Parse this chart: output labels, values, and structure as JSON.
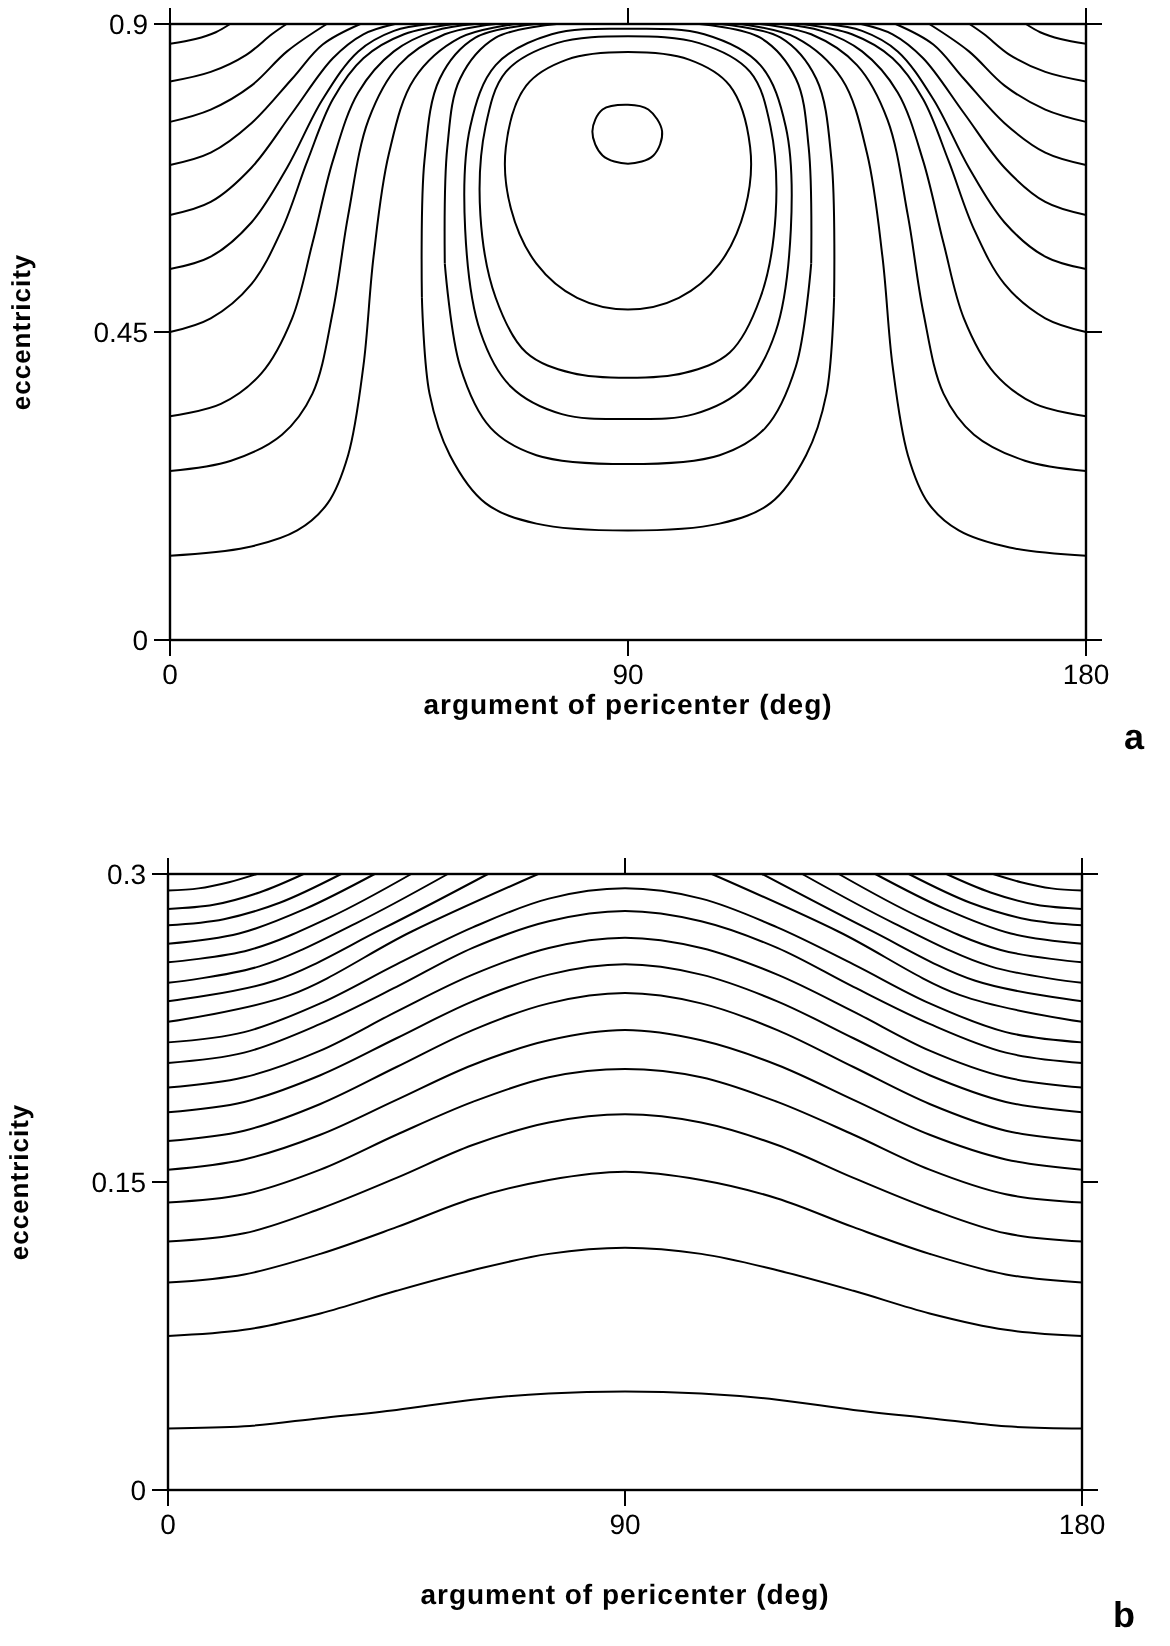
{
  "chart_data": [
    {
      "type": "line",
      "xlabel": "argument of pericenter (deg)",
      "ylabel": "eccentricity",
      "annotations": [
        "a"
      ],
      "xlim": [
        0,
        180
      ],
      "ylim": [
        0,
        0.9
      ],
      "xticks": [
        0,
        90,
        180
      ],
      "yticks": [
        0,
        0.45,
        0.9
      ],
      "marker": "none",
      "line_style": "solid",
      "series": [
        {
          "color": "#000000",
          "x": [
            0,
            5,
            9,
            11.8
          ],
          "values": [
            0.871,
            0.878,
            0.888,
            0.9
          ]
        },
        {
          "color": "#000000",
          "x": [
            168.2,
            171,
            175,
            180
          ],
          "values": [
            0.9,
            0.888,
            0.878,
            0.871
          ]
        },
        {
          "color": "#000000",
          "x": [
            0,
            8,
            15,
            20,
            22.9
          ],
          "values": [
            0.816,
            0.83,
            0.855,
            0.885,
            0.9
          ]
        },
        {
          "color": "#000000",
          "x": [
            157.1,
            160,
            165,
            172,
            180
          ],
          "values": [
            0.9,
            0.885,
            0.855,
            0.83,
            0.816
          ]
        },
        {
          "color": "#000000",
          "x": [
            0,
            8,
            16,
            23,
            30.8
          ],
          "values": [
            0.757,
            0.775,
            0.81,
            0.86,
            0.9
          ]
        },
        {
          "color": "#000000",
          "x": [
            149.2,
            157,
            164,
            172,
            180
          ],
          "values": [
            0.9,
            0.86,
            0.81,
            0.775,
            0.757
          ]
        },
        {
          "color": "#000000",
          "x": [
            0,
            8,
            16,
            24,
            30,
            37.4
          ],
          "values": [
            0.694,
            0.712,
            0.755,
            0.82,
            0.87,
            0.9
          ]
        },
        {
          "color": "#000000",
          "x": [
            142.6,
            150,
            156,
            164,
            172,
            180
          ],
          "values": [
            0.9,
            0.87,
            0.82,
            0.755,
            0.712,
            0.694
          ]
        },
        {
          "color": "#000000",
          "x": [
            0,
            8,
            16,
            24,
            32,
            38,
            44.2
          ],
          "values": [
            0.621,
            0.64,
            0.69,
            0.77,
            0.85,
            0.885,
            0.9
          ]
        },
        {
          "color": "#000000",
          "x": [
            135.8,
            142,
            148,
            156,
            164,
            172,
            180
          ],
          "values": [
            0.9,
            0.885,
            0.85,
            0.77,
            0.69,
            0.64,
            0.621
          ]
        },
        {
          "color": "#000000",
          "x": [
            0,
            8,
            16,
            23,
            30,
            37,
            44,
            51
          ],
          "values": [
            0.542,
            0.56,
            0.61,
            0.69,
            0.79,
            0.86,
            0.89,
            0.9
          ]
        },
        {
          "color": "#000000",
          "x": [
            129,
            136,
            143,
            150,
            157,
            164,
            172,
            180
          ],
          "values": [
            0.9,
            0.89,
            0.86,
            0.79,
            0.69,
            0.61,
            0.56,
            0.542
          ]
        },
        {
          "color": "#000000",
          "x": [
            0,
            8,
            16,
            22,
            27,
            32,
            38,
            46,
            56
          ],
          "values": [
            0.45,
            0.47,
            0.52,
            0.6,
            0.7,
            0.79,
            0.85,
            0.885,
            0.9
          ]
        },
        {
          "color": "#000000",
          "x": [
            124,
            134,
            142,
            148,
            153,
            158,
            164,
            172,
            180
          ],
          "values": [
            0.9,
            0.885,
            0.85,
            0.79,
            0.7,
            0.6,
            0.52,
            0.47,
            0.45
          ]
        },
        {
          "color": "#000000",
          "x": [
            0,
            10,
            18,
            24,
            28,
            32,
            37,
            44,
            52,
            60
          ],
          "values": [
            0.327,
            0.345,
            0.39,
            0.47,
            0.58,
            0.7,
            0.8,
            0.86,
            0.89,
            0.9
          ]
        },
        {
          "color": "#000000",
          "x": [
            120,
            128,
            136,
            143,
            148,
            152,
            156,
            162,
            170,
            180
          ],
          "values": [
            0.9,
            0.89,
            0.86,
            0.8,
            0.7,
            0.58,
            0.47,
            0.39,
            0.345,
            0.327
          ]
        },
        {
          "color": "#000000",
          "x": [
            0,
            12,
            22,
            28,
            32,
            35,
            39,
            45,
            54,
            64
          ],
          "values": [
            0.247,
            0.262,
            0.3,
            0.36,
            0.48,
            0.62,
            0.76,
            0.84,
            0.885,
            0.9
          ]
        },
        {
          "color": "#000000",
          "x": [
            116,
            126,
            135,
            141,
            145,
            148,
            152,
            158,
            168,
            180
          ],
          "values": [
            0.9,
            0.885,
            0.84,
            0.76,
            0.62,
            0.48,
            0.36,
            0.3,
            0.262,
            0.247
          ]
        },
        {
          "color": "#000000",
          "x": [
            0,
            15,
            25,
            31,
            35,
            38,
            40,
            43,
            48,
            57,
            68
          ],
          "values": [
            0.123,
            0.135,
            0.16,
            0.2,
            0.27,
            0.4,
            0.56,
            0.71,
            0.82,
            0.88,
            0.9
          ]
        },
        {
          "color": "#000000",
          "x": [
            112,
            123,
            132,
            137,
            140,
            142,
            145,
            149,
            155,
            165,
            180
          ],
          "values": [
            0.9,
            0.88,
            0.82,
            0.71,
            0.56,
            0.4,
            0.27,
            0.2,
            0.16,
            0.135,
            0.123
          ]
        },
        {
          "color": "#000000",
          "x": [
            49.5,
            50,
            53,
            60,
            72
          ],
          "values": [
            0.5,
            0.7,
            0.82,
            0.88,
            0.9
          ]
        },
        {
          "color": "#000000",
          "x": [
            49.5,
            51,
            55,
            62,
            72,
            90,
            108,
            118,
            125,
            129,
            130.5
          ],
          "values": [
            0.5,
            0.36,
            0.27,
            0.2,
            0.17,
            0.16,
            0.17,
            0.2,
            0.27,
            0.36,
            0.5
          ]
        },
        {
          "color": "#000000",
          "x": [
            108,
            120,
            127,
            130,
            130.5
          ],
          "values": [
            0.9,
            0.88,
            0.82,
            0.7,
            0.5
          ]
        },
        {
          "color": "#000000",
          "x": [
            54,
            54.5,
            57,
            64,
            76
          ],
          "values": [
            0.55,
            0.72,
            0.82,
            0.88,
            0.9
          ]
        },
        {
          "color": "#000000",
          "x": [
            54,
            57,
            63,
            72,
            90,
            108,
            117,
            123,
            126
          ],
          "values": [
            0.55,
            0.4,
            0.31,
            0.27,
            0.257,
            0.27,
            0.31,
            0.4,
            0.55
          ]
        },
        {
          "color": "#000000",
          "x": [
            104,
            116,
            123,
            125.5,
            126
          ],
          "values": [
            0.9,
            0.88,
            0.82,
            0.72,
            0.55
          ]
        }
      ]
    },
    {
      "type": "line",
      "xlabel": "argument of pericenter (deg)",
      "ylabel": "eccentricity",
      "annotations": [
        "b"
      ],
      "xlim": [
        0,
        180
      ],
      "ylim": [
        0,
        0.3
      ],
      "xticks": [
        0,
        90,
        180
      ],
      "yticks": [
        0,
        0.15,
        0.3
      ],
      "marker": "none",
      "line_style": "solid",
      "x": [
        0,
        15,
        30,
        45,
        60,
        75,
        90,
        105,
        120,
        135,
        150,
        165,
        180
      ],
      "series": [
        {
          "color": "#000000",
          "x": [
            0,
            6,
            12,
            17.5
          ],
          "values": [
            0.292,
            0.293,
            0.296,
            0.3
          ]
        },
        {
          "color": "#000000",
          "x": [
            162.5,
            168,
            174,
            180
          ],
          "values": [
            0.3,
            0.296,
            0.293,
            0.292
          ]
        },
        {
          "color": "#000000",
          "x": [
            0,
            9,
            18,
            26.7
          ],
          "values": [
            0.283,
            0.285,
            0.291,
            0.3
          ]
        },
        {
          "color": "#000000",
          "x": [
            153.3,
            162,
            171,
            180
          ],
          "values": [
            0.3,
            0.291,
            0.285,
            0.283
          ]
        },
        {
          "color": "#000000",
          "x": [
            0,
            11,
            22,
            34.1
          ],
          "values": [
            0.275,
            0.278,
            0.286,
            0.3
          ]
        },
        {
          "color": "#000000",
          "x": [
            145.9,
            158,
            169,
            180
          ],
          "values": [
            0.3,
            0.286,
            0.278,
            0.275
          ]
        },
        {
          "color": "#000000",
          "x": [
            0,
            14,
            27,
            40.7
          ],
          "values": [
            0.266,
            0.271,
            0.283,
            0.3
          ]
        },
        {
          "color": "#000000",
          "x": [
            139.3,
            153,
            166,
            180
          ],
          "values": [
            0.3,
            0.283,
            0.271,
            0.266
          ]
        },
        {
          "color": "#000000",
          "x": [
            0,
            16,
            32,
            47.9
          ],
          "values": [
            0.257,
            0.263,
            0.279,
            0.3
          ]
        },
        {
          "color": "#000000",
          "x": [
            132.1,
            148,
            164,
            180
          ],
          "values": [
            0.3,
            0.279,
            0.263,
            0.257
          ]
        },
        {
          "color": "#000000",
          "x": [
            0,
            18,
            37,
            55.1
          ],
          "values": [
            0.247,
            0.255,
            0.276,
            0.3
          ]
        },
        {
          "color": "#000000",
          "x": [
            124.9,
            143,
            162,
            180
          ],
          "values": [
            0.3,
            0.276,
            0.255,
            0.247
          ]
        },
        {
          "color": "#000000",
          "x": [
            0,
            21,
            42,
            63
          ],
          "values": [
            0.238,
            0.248,
            0.273,
            0.3
          ]
        },
        {
          "color": "#000000",
          "x": [
            117,
            138,
            159,
            180
          ],
          "values": [
            0.3,
            0.273,
            0.248,
            0.238
          ]
        },
        {
          "color": "#000000",
          "x": [
            0,
            24,
            48,
            72.9
          ],
          "values": [
            0.228,
            0.241,
            0.272,
            0.3
          ]
        },
        {
          "color": "#000000",
          "x": [
            107.1,
            132,
            156,
            180
          ],
          "values": [
            0.3,
            0.272,
            0.241,
            0.228
          ]
        },
        {
          "color": "#000000",
          "values": [
            0.218,
            0.223,
            0.237,
            0.256,
            0.274,
            0.288,
            0.293,
            0.288,
            0.274,
            0.256,
            0.237,
            0.223,
            0.218
          ]
        },
        {
          "color": "#000000",
          "values": [
            0.208,
            0.213,
            0.227,
            0.245,
            0.264,
            0.277,
            0.282,
            0.277,
            0.264,
            0.245,
            0.227,
            0.213,
            0.208
          ]
        },
        {
          "color": "#000000",
          "values": [
            0.196,
            0.201,
            0.214,
            0.233,
            0.251,
            0.264,
            0.269,
            0.264,
            0.251,
            0.233,
            0.214,
            0.201,
            0.196
          ]
        },
        {
          "color": "#000000",
          "values": [
            0.184,
            0.189,
            0.202,
            0.22,
            0.238,
            0.251,
            0.256,
            0.251,
            0.238,
            0.22,
            0.202,
            0.189,
            0.184
          ]
        },
        {
          "color": "#000000",
          "values": [
            0.17,
            0.175,
            0.188,
            0.206,
            0.224,
            0.237,
            0.242,
            0.237,
            0.224,
            0.206,
            0.188,
            0.175,
            0.17
          ]
        },
        {
          "color": "#000000",
          "values": [
            0.156,
            0.161,
            0.173,
            0.19,
            0.207,
            0.219,
            0.224,
            0.219,
            0.207,
            0.19,
            0.173,
            0.161,
            0.156
          ]
        },
        {
          "color": "#000000",
          "values": [
            0.14,
            0.144,
            0.156,
            0.173,
            0.189,
            0.201,
            0.205,
            0.201,
            0.189,
            0.173,
            0.156,
            0.144,
            0.14
          ]
        },
        {
          "color": "#000000",
          "values": [
            0.121,
            0.125,
            0.137,
            0.152,
            0.168,
            0.179,
            0.183,
            0.179,
            0.168,
            0.152,
            0.137,
            0.125,
            0.121
          ]
        },
        {
          "color": "#000000",
          "values": [
            0.101,
            0.105,
            0.115,
            0.128,
            0.142,
            0.151,
            0.155,
            0.151,
            0.142,
            0.128,
            0.115,
            0.105,
            0.101
          ]
        },
        {
          "color": "#000000",
          "values": [
            0.075,
            0.078,
            0.086,
            0.097,
            0.107,
            0.115,
            0.118,
            0.115,
            0.107,
            0.097,
            0.086,
            0.078,
            0.075
          ]
        },
        {
          "color": "#000000",
          "values": [
            0.03,
            0.031,
            0.035,
            0.039,
            0.044,
            0.047,
            0.048,
            0.047,
            0.044,
            0.039,
            0.035,
            0.031,
            0.03
          ]
        }
      ]
    }
  ]
}
